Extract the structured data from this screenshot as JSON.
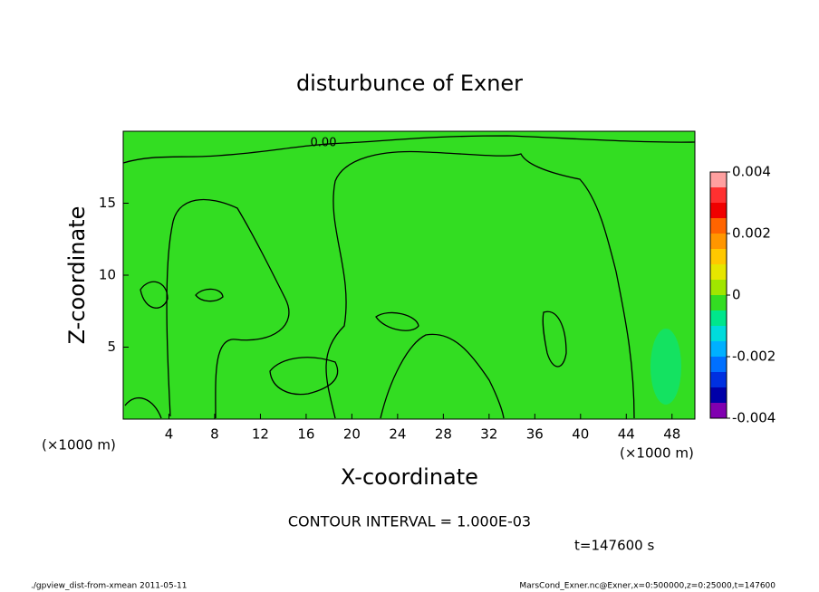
{
  "chart_data": {
    "type": "contour",
    "title": "disturbunce of Exner",
    "x_label": "X-coordinate",
    "y_label": "Z-coordinate",
    "x_unit": "(×1000 m)",
    "xlim": [
      0,
      50
    ],
    "ylim": [
      0,
      20
    ],
    "xticks": [
      4,
      8,
      12,
      16,
      20,
      24,
      28,
      32,
      36,
      40,
      44,
      48
    ],
    "yticks": [
      5,
      10,
      15
    ],
    "field_color": "#33dd22",
    "contour_label": "0.00",
    "colorbar": {
      "levels": [
        -0.004,
        -0.0035,
        -0.003,
        -0.0025,
        -0.002,
        -0.0015,
        -0.001,
        -0.0005,
        0,
        0.0005,
        0.001,
        0.0015,
        0.002,
        0.0025,
        0.003,
        0.0035,
        0.004
      ],
      "colors": [
        "#8000b0",
        "#0000a8",
        "#0030e0",
        "#0070ff",
        "#00b0ff",
        "#00dcdc",
        "#00e68c",
        "#33dd22",
        "#a0e600",
        "#e6e600",
        "#ffc800",
        "#ff9600",
        "#ff6400",
        "#f00000",
        "#ff3030",
        "#ffa0a0"
      ],
      "ticks": [
        0.004,
        0.002,
        0,
        -0.002,
        -0.004
      ]
    },
    "contour_interval": "CONTOUR INTERVAL = 1.000E-03",
    "time_label": "t=147600 s",
    "footer_left": "./gpview_dist-from-xmean  2011-05-11",
    "footer_right": "MarsCond_Exner.nc@Exner,x=0:500000,z=0:25000,t=147600"
  }
}
